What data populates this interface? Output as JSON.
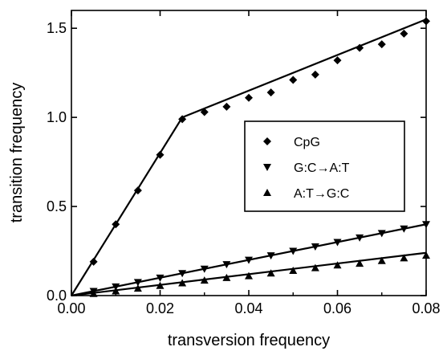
{
  "chart_data": {
    "type": "scatter",
    "title": "",
    "xlabel": "transversion frequency",
    "ylabel": "transition frequency",
    "xlim": [
      0,
      0.08
    ],
    "ylim": [
      0,
      1.6
    ],
    "grid": false,
    "legend_position": "right-center",
    "x_ticks": [
      {
        "value": 0,
        "label": "0.00"
      },
      {
        "value": 0.02,
        "label": "0.02"
      },
      {
        "value": 0.04,
        "label": "0.04"
      },
      {
        "value": 0.06,
        "label": "0.06"
      },
      {
        "value": 0.08,
        "label": "0.08"
      }
    ],
    "y_ticks": [
      {
        "value": 0,
        "label": "0.0"
      },
      {
        "value": 0.5,
        "label": "0.5"
      },
      {
        "value": 1.0,
        "label": "1.0"
      },
      {
        "value": 1.5,
        "label": "1.5"
      }
    ],
    "series": [
      {
        "name": "CpG",
        "marker": "diamond",
        "color": "#000000",
        "points": [
          [
            0.005,
            0.19
          ],
          [
            0.01,
            0.4
          ],
          [
            0.015,
            0.59
          ],
          [
            0.02,
            0.79
          ],
          [
            0.025,
            0.99
          ],
          [
            0.03,
            1.03
          ],
          [
            0.035,
            1.06
          ],
          [
            0.04,
            1.11
          ],
          [
            0.045,
            1.14
          ],
          [
            0.05,
            1.21
          ],
          [
            0.055,
            1.24
          ],
          [
            0.06,
            1.32
          ],
          [
            0.065,
            1.39
          ],
          [
            0.07,
            1.41
          ],
          [
            0.075,
            1.47
          ],
          [
            0.08,
            1.54
          ]
        ],
        "fit": [
          [
            0,
            0
          ],
          [
            0.025,
            1.0
          ],
          [
            0.08,
            1.55
          ]
        ]
      },
      {
        "name": "G:C→A:T",
        "marker": "triangle-down",
        "color": "#000000",
        "points": [
          [
            0.005,
            0.025
          ],
          [
            0.01,
            0.05
          ],
          [
            0.015,
            0.075
          ],
          [
            0.02,
            0.1
          ],
          [
            0.025,
            0.125
          ],
          [
            0.03,
            0.15
          ],
          [
            0.035,
            0.175
          ],
          [
            0.04,
            0.2
          ],
          [
            0.045,
            0.225
          ],
          [
            0.05,
            0.25
          ],
          [
            0.055,
            0.275
          ],
          [
            0.06,
            0.3
          ],
          [
            0.065,
            0.325
          ],
          [
            0.07,
            0.35
          ],
          [
            0.075,
            0.375
          ],
          [
            0.08,
            0.4
          ]
        ],
        "fit": [
          [
            0,
            0
          ],
          [
            0.08,
            0.4
          ]
        ]
      },
      {
        "name": "A:T→G:C",
        "marker": "triangle-up",
        "color": "#000000",
        "points": [
          [
            0.005,
            0.01
          ],
          [
            0.01,
            0.025
          ],
          [
            0.015,
            0.04
          ],
          [
            0.02,
            0.055
          ],
          [
            0.025,
            0.07
          ],
          [
            0.03,
            0.085
          ],
          [
            0.035,
            0.1
          ],
          [
            0.04,
            0.11
          ],
          [
            0.045,
            0.125
          ],
          [
            0.05,
            0.14
          ],
          [
            0.055,
            0.155
          ],
          [
            0.06,
            0.17
          ],
          [
            0.065,
            0.18
          ],
          [
            0.07,
            0.195
          ],
          [
            0.075,
            0.21
          ],
          [
            0.08,
            0.225
          ]
        ],
        "fit": [
          [
            0,
            0
          ],
          [
            0.08,
            0.24
          ]
        ]
      }
    ]
  }
}
